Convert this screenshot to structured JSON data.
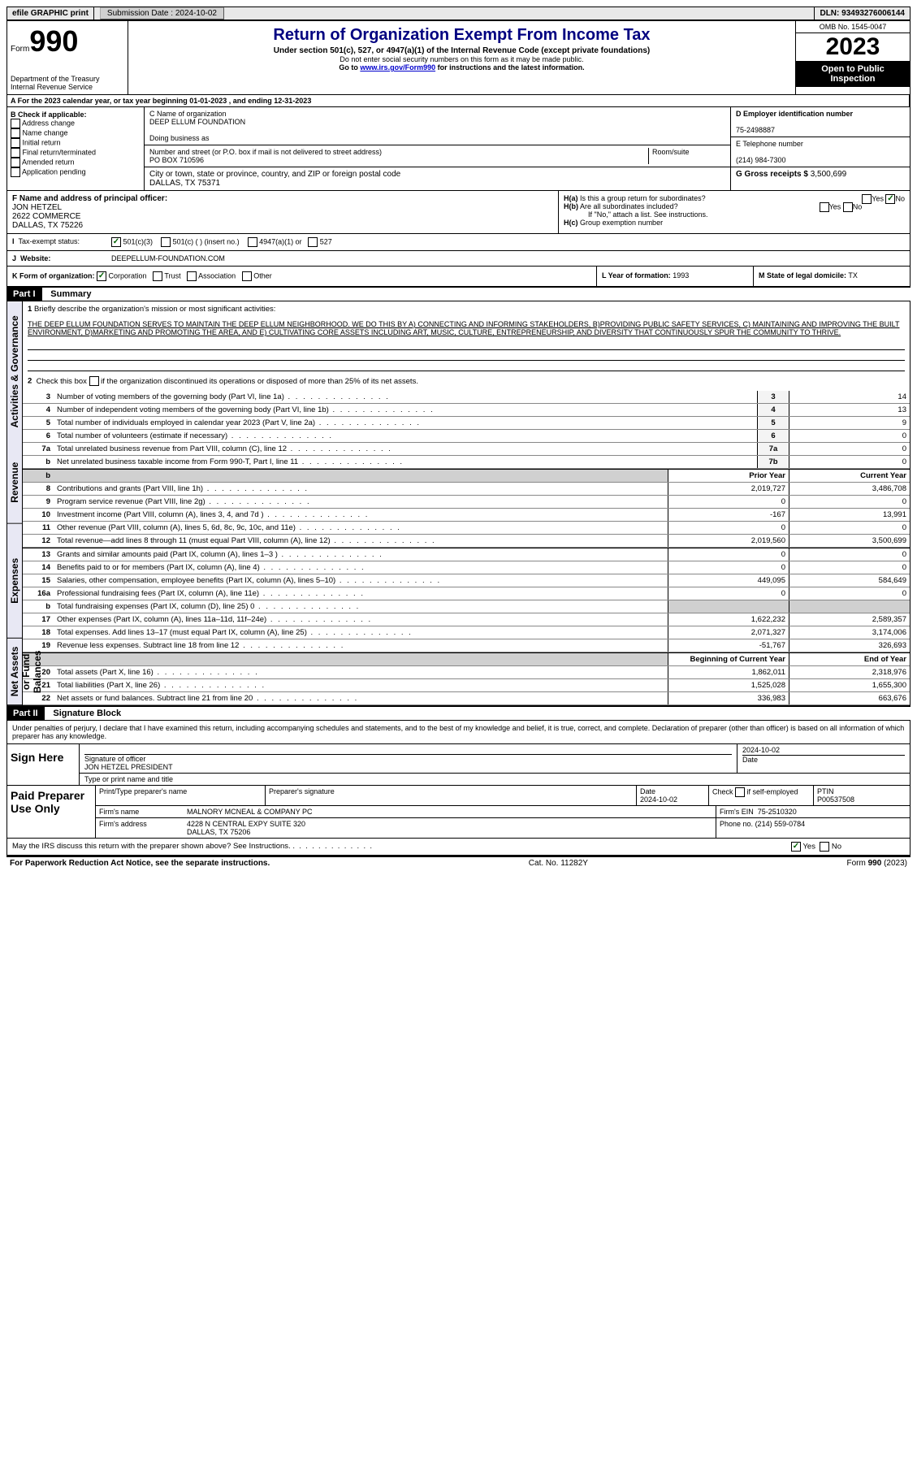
{
  "topbar": {
    "efile": "efile GRAPHIC print",
    "submission_label": "Submission Date : 2024-10-02",
    "dln": "DLN: 93493276006144"
  },
  "header": {
    "form_prefix": "Form",
    "form_no": "990",
    "dept": "Department of the Treasury\nInternal Revenue Service",
    "title": "Return of Organization Exempt From Income Tax",
    "sub": "Under section 501(c), 527, or 4947(a)(1) of the Internal Revenue Code (except private foundations)",
    "note1": "Do not enter social security numbers on this form as it may be made public.",
    "note2": "Go to www.irs.gov/Form990 for instructions and the latest information.",
    "omb": "OMB No. 1545-0047",
    "year": "2023",
    "inspect": "Open to Public Inspection"
  },
  "lineA": "A For the 2023 calendar year, or tax year beginning 01-01-2023   , and ending 12-31-2023",
  "boxB": {
    "label": "B Check if applicable:",
    "opts": [
      "Address change",
      "Name change",
      "Initial return",
      "Final return/terminated",
      "Amended return",
      "Application pending"
    ]
  },
  "boxC": {
    "name_label": "C Name of organization",
    "name": "DEEP ELLUM FOUNDATION",
    "dba_label": "Doing business as",
    "street_label": "Number and street (or P.O. box if mail is not delivered to street address)",
    "street": "PO BOX 710596",
    "room_label": "Room/suite",
    "city_label": "City or town, state or province, country, and ZIP or foreign postal code",
    "city": "DALLAS, TX  75371"
  },
  "boxD": {
    "label": "D Employer identification number",
    "value": "75-2498887"
  },
  "boxE": {
    "label": "E Telephone number",
    "value": "(214) 984-7300"
  },
  "boxG": {
    "label": "G Gross receipts $",
    "value": "3,500,699"
  },
  "boxF": {
    "label": "F Name and address of principal officer:",
    "name": "JON HETZEL",
    "addr1": "2622 COMMERCE",
    "addr2": "DALLAS, TX  75226"
  },
  "boxH": {
    "a": "Is this a group return for subordinates?",
    "b": "Are all subordinates included?",
    "b_note": "If \"No,\" attach a list. See instructions.",
    "c": "Group exemption number"
  },
  "boxI": {
    "label": "Tax-exempt status:",
    "opt1": "501(c)(3)",
    "opt2": "501(c) (  ) (insert no.)",
    "opt3": "4947(a)(1) or",
    "opt4": "527"
  },
  "boxJ": {
    "label": "Website:",
    "value": "DEEPELLUM-FOUNDATION.COM"
  },
  "boxK": {
    "label": "K Form of organization:",
    "opt1": "Corporation",
    "opt2": "Trust",
    "opt3": "Association",
    "opt4": "Other"
  },
  "boxL": {
    "label": "L Year of formation:",
    "value": "1993"
  },
  "boxM": {
    "label": "M State of legal domicile:",
    "value": "TX"
  },
  "part1": {
    "header": "Part I",
    "title": "Summary",
    "q1_label": "1",
    "q1_text": "Briefly describe the organization's mission or most significant activities:",
    "mission": "THE DEEP ELLUM FOUNDATION SERVES TO MAINTAIN THE DEEP ELLUM NEIGHBORHOOD. WE DO THIS BY A) CONNECTING AND INFORMING STAKEHOLDERS, B)PROVIDING PUBLIC SAFETY SERVICES, C) MAINTAINING AND IMPROVING THE BUILT ENVIRONMENT, D)MARKETING AND PROMOTING THE AREA, AND E) CULTIVATING CORE ASSETS INCLUDING ART, MUSIC, CULTURE, ENTREPRENEURSHIP, AND DIVERSITY THAT CONTINUOUSLY SPUR THE COMMUNITY TO THRIVE.",
    "q2": "Check this box      if the organization discontinued its operations or disposed of more than 25% of its net assets.",
    "vlabels": {
      "gov": "Activities & Governance",
      "rev": "Revenue",
      "exp": "Expenses",
      "net": "Net Assets or Fund Balances"
    },
    "col_prior": "Prior Year",
    "col_current": "Current Year",
    "col_begin": "Beginning of Current Year",
    "col_end": "End of Year",
    "rows_gov": [
      {
        "n": "3",
        "d": "Number of voting members of the governing body (Part VI, line 1a)",
        "box": "3",
        "v": "14"
      },
      {
        "n": "4",
        "d": "Number of independent voting members of the governing body (Part VI, line 1b)",
        "box": "4",
        "v": "13"
      },
      {
        "n": "5",
        "d": "Total number of individuals employed in calendar year 2023 (Part V, line 2a)",
        "box": "5",
        "v": "9"
      },
      {
        "n": "6",
        "d": "Total number of volunteers (estimate if necessary)",
        "box": "6",
        "v": "0"
      },
      {
        "n": "7a",
        "d": "Total unrelated business revenue from Part VIII, column (C), line 12",
        "box": "7a",
        "v": "0"
      },
      {
        "n": "b",
        "d": "Net unrelated business taxable income from Form 990-T, Part I, line 11",
        "box": "7b",
        "v": "0"
      }
    ],
    "rows_rev": [
      {
        "n": "8",
        "d": "Contributions and grants (Part VIII, line 1h)",
        "p": "2,019,727",
        "c": "3,486,708"
      },
      {
        "n": "9",
        "d": "Program service revenue (Part VIII, line 2g)",
        "p": "0",
        "c": "0"
      },
      {
        "n": "10",
        "d": "Investment income (Part VIII, column (A), lines 3, 4, and 7d )",
        "p": "-167",
        "c": "13,991"
      },
      {
        "n": "11",
        "d": "Other revenue (Part VIII, column (A), lines 5, 6d, 8c, 9c, 10c, and 11e)",
        "p": "0",
        "c": "0"
      },
      {
        "n": "12",
        "d": "Total revenue—add lines 8 through 11 (must equal Part VIII, column (A), line 12)",
        "p": "2,019,560",
        "c": "3,500,699"
      }
    ],
    "rows_exp": [
      {
        "n": "13",
        "d": "Grants and similar amounts paid (Part IX, column (A), lines 1–3 )",
        "p": "0",
        "c": "0"
      },
      {
        "n": "14",
        "d": "Benefits paid to or for members (Part IX, column (A), line 4)",
        "p": "0",
        "c": "0"
      },
      {
        "n": "15",
        "d": "Salaries, other compensation, employee benefits (Part IX, column (A), lines 5–10)",
        "p": "449,095",
        "c": "584,649"
      },
      {
        "n": "16a",
        "d": "Professional fundraising fees (Part IX, column (A), line 11e)",
        "p": "0",
        "c": "0"
      },
      {
        "n": "b",
        "d": "Total fundraising expenses (Part IX, column (D), line 25) 0",
        "p": "grey",
        "c": "grey"
      },
      {
        "n": "17",
        "d": "Other expenses (Part IX, column (A), lines 11a–11d, 11f–24e)",
        "p": "1,622,232",
        "c": "2,589,357"
      },
      {
        "n": "18",
        "d": "Total expenses. Add lines 13–17 (must equal Part IX, column (A), line 25)",
        "p": "2,071,327",
        "c": "3,174,006"
      },
      {
        "n": "19",
        "d": "Revenue less expenses. Subtract line 18 from line 12",
        "p": "-51,767",
        "c": "326,693"
      }
    ],
    "rows_net": [
      {
        "n": "20",
        "d": "Total assets (Part X, line 16)",
        "p": "1,862,011",
        "c": "2,318,976"
      },
      {
        "n": "21",
        "d": "Total liabilities (Part X, line 26)",
        "p": "1,525,028",
        "c": "1,655,300"
      },
      {
        "n": "22",
        "d": "Net assets or fund balances. Subtract line 21 from line 20",
        "p": "336,983",
        "c": "663,676"
      }
    ]
  },
  "part2": {
    "header": "Part II",
    "title": "Signature Block",
    "decl": "Under penalties of perjury, I declare that I have examined this return, including accompanying schedules and statements, and to the best of my knowledge and belief, it is true, correct, and complete. Declaration of preparer (other than officer) is based on all information of which preparer has any knowledge.",
    "sign_here": "Sign Here",
    "sig_officer_label": "Signature of officer",
    "sig_date": "2024-10-02",
    "sig_date_label": "Date",
    "officer_name": "JON HETZEL PRESIDENT",
    "officer_label": "Type or print name and title",
    "paid": "Paid Preparer Use Only",
    "prep_name_label": "Print/Type preparer's name",
    "prep_sig_label": "Preparer's signature",
    "prep_date_label": "Date",
    "prep_date": "2024-10-02",
    "self_emp": "Check      if self-employed",
    "ptin_label": "PTIN",
    "ptin": "P00537508",
    "firm_name_label": "Firm's name",
    "firm_name": "MALNORY MCNEAL & COMPANY PC",
    "firm_ein_label": "Firm's EIN",
    "firm_ein": "75-2510320",
    "firm_addr_label": "Firm's address",
    "firm_addr": "4228 N CENTRAL EXPY SUITE 320\nDALLAS, TX  75206",
    "phone_label": "Phone no.",
    "phone": "(214) 559-0784",
    "discuss": "May the IRS discuss this return with the preparer shown above? See Instructions."
  },
  "footer": {
    "pra": "For Paperwork Reduction Act Notice, see the separate instructions.",
    "cat": "Cat. No. 11282Y",
    "form": "Form 990 (2023)"
  }
}
